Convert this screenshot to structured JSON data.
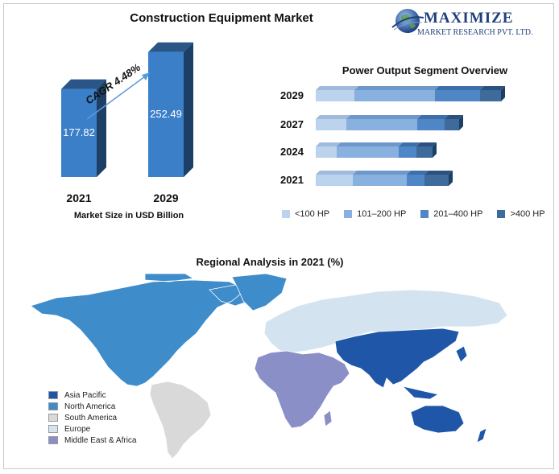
{
  "colors": {
    "bar_front": "#3a7fc8",
    "bar_side": "#1d3f66",
    "bar_top": "#2a5687",
    "seg_100": "#bcd3ee",
    "seg_200": "#88b1e0",
    "seg_400": "#4f86c6",
    "seg_over": "#3e6a9c",
    "asia_pacific": "#1f56a8",
    "north_america": "#3f8ccb",
    "south_america": "#d9d9d9",
    "europe": "#d3e4f0",
    "mea": "#8a8fc7"
  },
  "logo": {
    "line1": "MAXIMIZE",
    "line2": "MARKET RESEARCH PVT. LTD."
  },
  "chart_data": [
    {
      "type": "bar",
      "title": "Construction Equipment Market",
      "xlabel": "Market Size in USD Billion",
      "categories": [
        "2021",
        "2029"
      ],
      "values": [
        177.82,
        252.49
      ],
      "value_labels": [
        "177.82",
        "252.49"
      ],
      "annotation": "CAGR 4.48%",
      "ylim": [
        0,
        260
      ]
    },
    {
      "type": "bar",
      "orientation": "horizontal",
      "stacked": true,
      "title": "Power Output Segment Overview",
      "categories": [
        "2029",
        "2027",
        "2024",
        "2021"
      ],
      "series": [
        {
          "name": "<100 HP",
          "color_key": "seg_100",
          "values": [
            48,
            38,
            26,
            46
          ]
        },
        {
          "name": "101–200 HP",
          "color_key": "seg_200",
          "values": [
            100,
            88,
            77,
            67
          ]
        },
        {
          "name": "201–400 HP",
          "color_key": "seg_400",
          "values": [
            56,
            34,
            22,
            22
          ]
        },
        {
          "name": ">400 HP",
          "color_key": "seg_over",
          "values": [
            26,
            18,
            20,
            30
          ]
        }
      ],
      "legend_position": "bottom"
    },
    {
      "type": "map",
      "title": "Regional Analysis in 2021 (%)",
      "legend": [
        {
          "name": "Asia Pacific",
          "color_key": "asia_pacific"
        },
        {
          "name": "North America",
          "color_key": "north_america"
        },
        {
          "name": "South America",
          "color_key": "south_america"
        },
        {
          "name": "Europe",
          "color_key": "europe"
        },
        {
          "name": "Middle East & Africa",
          "color_key": "mea"
        }
      ],
      "legend_position": "bottom-left"
    }
  ]
}
